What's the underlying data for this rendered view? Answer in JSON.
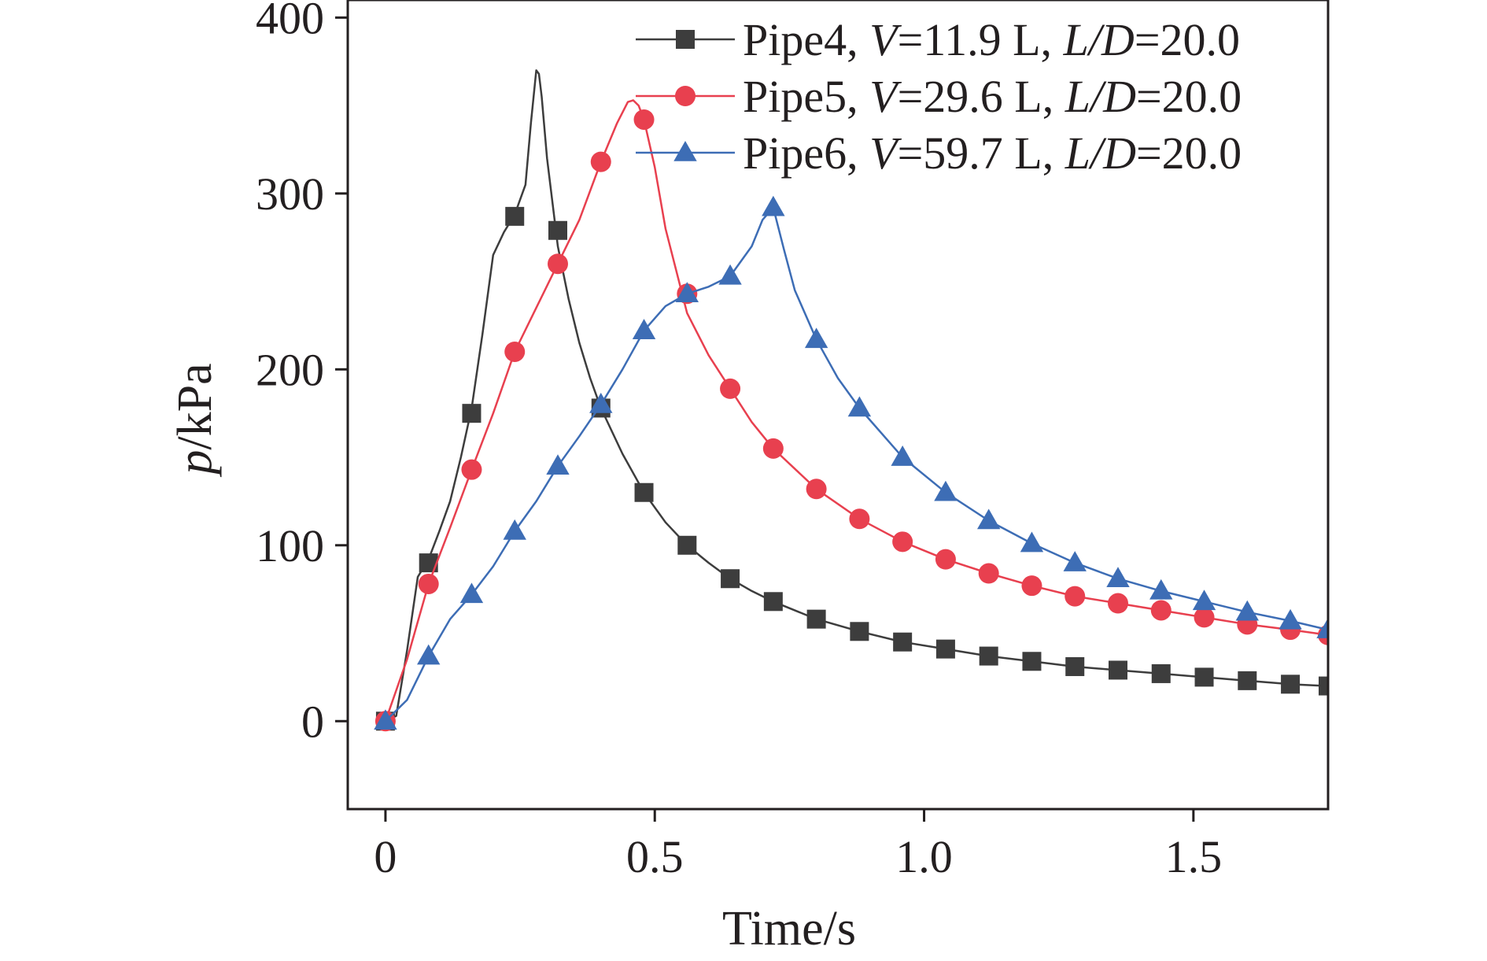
{
  "chart_data": {
    "type": "line",
    "title": "",
    "xlabel": "Time/s",
    "ylabel": {
      "var": "p",
      "unit": "/kPa"
    },
    "xlim": [
      -0.07,
      1.75
    ],
    "ylim": [
      -50,
      410
    ],
    "x_ticks": [
      0,
      0.5,
      1.0,
      1.5
    ],
    "x_tick_labels": [
      "0",
      "0.5",
      "1.0",
      "1.5"
    ],
    "y_ticks": [
      0,
      100,
      200,
      300,
      400
    ],
    "y_tick_labels": [
      "0",
      "100",
      "200",
      "300",
      "400"
    ],
    "grid": false,
    "legend_position": "top-right",
    "series": [
      {
        "name": "Pipe4, V=11.9 L, L/D=20.0",
        "legend_parts": {
          "prefix": "Pipe4, ",
          "v_label": "V",
          "v_value": "=11.9 L, ",
          "ld_label": "L/D",
          "ld_value": "=20.0"
        },
        "color": "#3d3d3d",
        "marker": "square",
        "curve_x": [
          0,
          0.02,
          0.04,
          0.06,
          0.08,
          0.1,
          0.12,
          0.14,
          0.16,
          0.18,
          0.2,
          0.22,
          0.24,
          0.26,
          0.27,
          0.28,
          0.285,
          0.29,
          0.3,
          0.32,
          0.34,
          0.36,
          0.38,
          0.4,
          0.44,
          0.48,
          0.52,
          0.56,
          0.6,
          0.64,
          0.68,
          0.72,
          0.8,
          0.88,
          0.96,
          1.04,
          1.12,
          1.2,
          1.28,
          1.36,
          1.44,
          1.52,
          1.6,
          1.68,
          1.75
        ],
        "curve_y": [
          0,
          3,
          40,
          82,
          92,
          108,
          125,
          150,
          178,
          220,
          265,
          278,
          288,
          305,
          340,
          370,
          368,
          355,
          320,
          270,
          240,
          215,
          195,
          178,
          152,
          130,
          113,
          100,
          90,
          81,
          74,
          68,
          58,
          51,
          45,
          41,
          37,
          34,
          31,
          29,
          27,
          25,
          23,
          21,
          20
        ],
        "marker_x": [
          0,
          0.08,
          0.16,
          0.24,
          0.32,
          0.4,
          0.48,
          0.56,
          0.64,
          0.72,
          0.8,
          0.88,
          0.96,
          1.04,
          1.12,
          1.2,
          1.28,
          1.36,
          1.44,
          1.52,
          1.6,
          1.68,
          1.75
        ],
        "marker_y": [
          0,
          90,
          175,
          287,
          279,
          178,
          130,
          100,
          81,
          68,
          58,
          51,
          45,
          41,
          37,
          34,
          31,
          29,
          27,
          25,
          23,
          21,
          20
        ]
      },
      {
        "name": "Pipe5, V=29.6 L, L/D=20.0",
        "legend_parts": {
          "prefix": "Pipe5, ",
          "v_label": "V",
          "v_value": "=29.6 L, ",
          "ld_label": "L/D",
          "ld_value": "=20.0"
        },
        "color": "#e8404f",
        "marker": "circle",
        "curve_x": [
          0,
          0.04,
          0.08,
          0.12,
          0.16,
          0.2,
          0.24,
          0.28,
          0.32,
          0.36,
          0.4,
          0.43,
          0.45,
          0.46,
          0.47,
          0.48,
          0.5,
          0.52,
          0.56,
          0.6,
          0.64,
          0.68,
          0.72,
          0.8,
          0.88,
          0.96,
          1.04,
          1.12,
          1.2,
          1.28,
          1.36,
          1.44,
          1.52,
          1.6,
          1.68,
          1.75
        ],
        "curve_y": [
          0,
          35,
          78,
          110,
          143,
          175,
          210,
          235,
          260,
          285,
          318,
          340,
          352,
          353,
          350,
          342,
          315,
          280,
          232,
          208,
          189,
          170,
          155,
          132,
          115,
          102,
          92,
          84,
          77,
          71,
          67,
          63,
          59,
          55,
          52,
          49
        ],
        "marker_x": [
          0,
          0.08,
          0.16,
          0.24,
          0.32,
          0.4,
          0.48,
          0.56,
          0.64,
          0.72,
          0.8,
          0.88,
          0.96,
          1.04,
          1.12,
          1.2,
          1.28,
          1.36,
          1.44,
          1.52,
          1.6,
          1.68,
          1.75
        ],
        "marker_y": [
          0,
          78,
          143,
          210,
          260,
          318,
          342,
          243,
          189,
          155,
          132,
          115,
          102,
          92,
          84,
          77,
          71,
          67,
          63,
          59,
          55,
          52,
          49
        ]
      },
      {
        "name": "Pipe6, V=59.7 L, L/D=20.0",
        "legend_parts": {
          "prefix": "Pipe6, ",
          "v_label": "V",
          "v_value": "=59.7 L, ",
          "ld_label": "L/D",
          "ld_value": "=20.0"
        },
        "color": "#3d6db5",
        "marker": "triangle",
        "curve_x": [
          0,
          0.04,
          0.08,
          0.12,
          0.16,
          0.2,
          0.24,
          0.28,
          0.32,
          0.36,
          0.4,
          0.44,
          0.48,
          0.52,
          0.56,
          0.6,
          0.64,
          0.68,
          0.7,
          0.72,
          0.74,
          0.76,
          0.8,
          0.84,
          0.88,
          0.96,
          1.04,
          1.12,
          1.2,
          1.28,
          1.36,
          1.44,
          1.52,
          1.6,
          1.68,
          1.75
        ],
        "curve_y": [
          0,
          12,
          37,
          58,
          72,
          88,
          108,
          125,
          145,
          162,
          180,
          200,
          222,
          236,
          243,
          247,
          253,
          270,
          285,
          292,
          268,
          245,
          217,
          195,
          178,
          150,
          130,
          114,
          101,
          90,
          81,
          74,
          68,
          62,
          57,
          52
        ],
        "marker_x": [
          0,
          0.08,
          0.16,
          0.24,
          0.32,
          0.4,
          0.48,
          0.56,
          0.64,
          0.72,
          0.8,
          0.88,
          0.96,
          1.04,
          1.12,
          1.2,
          1.28,
          1.36,
          1.44,
          1.52,
          1.6,
          1.68,
          1.75
        ],
        "marker_y": [
          0,
          37,
          72,
          108,
          145,
          180,
          222,
          243,
          253,
          292,
          217,
          178,
          150,
          130,
          114,
          101,
          90,
          81,
          74,
          68,
          62,
          57,
          52
        ]
      }
    ]
  }
}
